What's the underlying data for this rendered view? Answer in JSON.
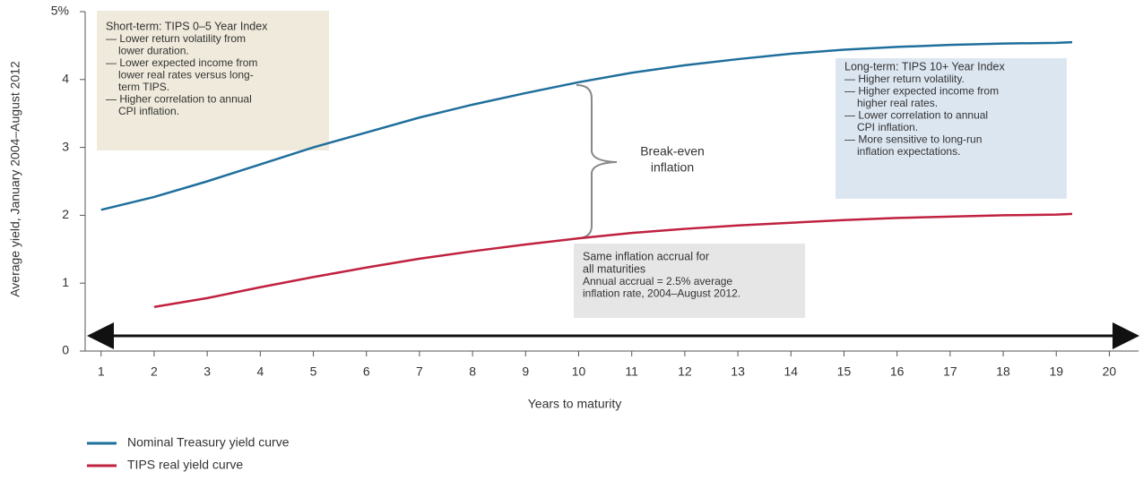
{
  "chart_data": {
    "type": "line",
    "x_label": "Years to maturity",
    "y_label": "Average yield, January 2004–August 2012",
    "xlim": [
      0.7,
      20.55
    ],
    "ylim": [
      0,
      5
    ],
    "xticks": [
      1,
      2,
      3,
      4,
      5,
      6,
      7,
      8,
      9,
      10,
      11,
      12,
      13,
      14,
      15,
      16,
      17,
      18,
      19,
      20
    ],
    "yticks": [
      0,
      1,
      2,
      3,
      4,
      {
        "value": 5,
        "label": "5%"
      }
    ],
    "series": [
      {
        "name": "Nominal Treasury yield curve",
        "color": "#1f6f9c",
        "x": [
          1,
          2,
          3,
          4,
          5,
          6,
          7,
          8,
          9,
          10,
          11,
          12,
          13,
          14,
          15,
          16,
          17,
          18,
          19,
          19.3
        ],
        "values": [
          2.08,
          2.27,
          2.5,
          2.75,
          3.0,
          3.22,
          3.44,
          3.63,
          3.8,
          3.96,
          4.1,
          4.21,
          4.3,
          4.38,
          4.44,
          4.48,
          4.51,
          4.53,
          4.54,
          4.55
        ]
      },
      {
        "name": "TIPS real yield curve",
        "color": "#c0213f",
        "x": [
          2,
          3,
          4,
          5,
          6,
          7,
          8,
          9,
          10,
          11,
          12,
          13,
          14,
          15,
          16,
          17,
          18,
          19,
          19.3
        ],
        "values": [
          0.65,
          0.78,
          0.94,
          1.09,
          1.23,
          1.36,
          1.47,
          1.57,
          1.66,
          1.74,
          1.8,
          1.85,
          1.89,
          1.93,
          1.96,
          1.98,
          2.0,
          2.01,
          2.02
        ]
      }
    ],
    "brace_label": [
      "Break-even",
      "inflation"
    ],
    "annotations": [
      {
        "title": [
          "Short-term: TIPS 0–5 Year Index"
        ],
        "items": [
          [
            "— Lower return volatility from",
            "lower duration."
          ],
          [
            "— Lower expected income from",
            "lower real rates versus long-",
            "term TIPS."
          ],
          [
            "— Higher correlation to annual",
            "CPI inflation."
          ]
        ]
      },
      {
        "title": [
          "Long-term: TIPS 10+ Year Index"
        ],
        "items": [
          [
            "— Higher return volatility."
          ],
          [
            "— Higher expected income from",
            "higher real rates."
          ],
          [
            "— Lower correlation to annual",
            "CPI inflation."
          ],
          [
            "— More sensitive to long-run",
            "inflation expectations."
          ]
        ]
      },
      {
        "title": [
          "Same inflation accrual for",
          "all maturities"
        ],
        "items": [
          [
            "Annual accrual = 2.5% average",
            "inflation rate, 2004–August 2012."
          ]
        ]
      }
    ]
  }
}
